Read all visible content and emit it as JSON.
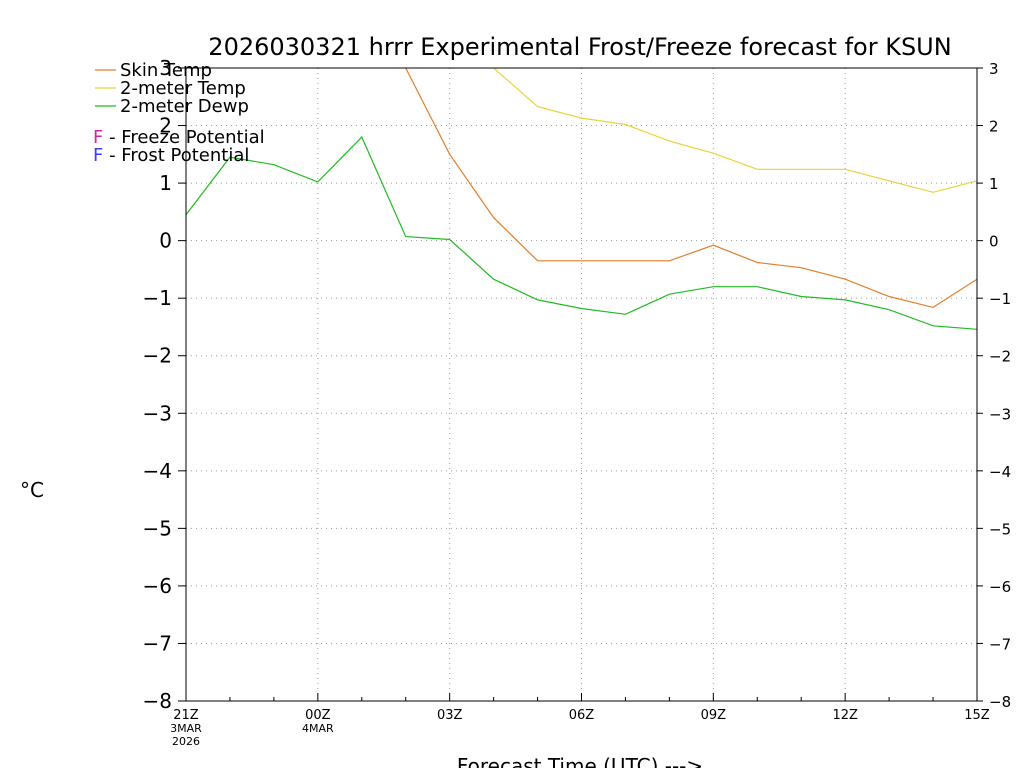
{
  "chart_data": {
    "type": "line",
    "title": "2026030321 hrrr Experimental Frost/Freeze forecast for KSUN",
    "xlabel": "Forecast Time (UTC) --->",
    "ylabel_unit": "°C",
    "ylim": [
      -8,
      3
    ],
    "xlim": [
      0,
      18
    ],
    "y_ticks": [
      "−8",
      "−7",
      "−6",
      "−5",
      "−4",
      "−3",
      "−2",
      "−1",
      "0",
      "1",
      "2",
      "3"
    ],
    "y_tick_values": [
      -8,
      -7,
      -6,
      -5,
      -4,
      -3,
      -2,
      -1,
      0,
      1,
      2,
      3
    ],
    "x_ticks": [
      {
        "x": 0,
        "lines": [
          "21Z",
          "3MAR",
          "2026"
        ]
      },
      {
        "x": 3,
        "lines": [
          "00Z",
          "4MAR"
        ]
      },
      {
        "x": 6,
        "lines": [
          "03Z"
        ]
      },
      {
        "x": 9,
        "lines": [
          "06Z"
        ]
      },
      {
        "x": 12,
        "lines": [
          "09Z"
        ]
      },
      {
        "x": 15,
        "lines": [
          "12Z"
        ]
      },
      {
        "x": 18,
        "lines": [
          "15Z"
        ]
      }
    ],
    "grid": true,
    "legend_position": "top-left",
    "x": [
      0,
      1,
      2,
      3,
      4,
      5,
      6,
      7,
      8,
      9,
      10,
      11,
      12,
      13,
      14,
      15,
      16,
      17,
      18
    ],
    "series": [
      {
        "name": "Skin Temp",
        "color": "#e07f2a",
        "values": [
          null,
          null,
          null,
          null,
          null,
          3.0,
          1.5,
          0.4,
          -0.35,
          -0.35,
          -0.35,
          -0.35,
          -0.08,
          -0.38,
          -0.47,
          -0.67,
          -0.97,
          -1.16,
          -0.67
        ]
      },
      {
        "name": "2-meter Temp",
        "color": "#e8d23a",
        "values": [
          null,
          null,
          null,
          null,
          null,
          null,
          null,
          3.0,
          2.33,
          2.13,
          2.02,
          1.73,
          1.52,
          1.24,
          1.24,
          1.24,
          1.04,
          0.84,
          1.04
        ]
      },
      {
        "name": "2-meter Dewp",
        "color": "#22bb22",
        "values": [
          0.45,
          1.45,
          1.32,
          1.02,
          1.8,
          0.07,
          0.02,
          -0.67,
          -1.03,
          -1.18,
          -1.28,
          -0.93,
          -0.8,
          -0.8,
          -0.97,
          -1.03,
          -1.2,
          -1.48,
          -1.54
        ]
      }
    ],
    "annotations": [
      {
        "letter": "F",
        "text": " - Freeze Potential",
        "color": "#cc2a9a"
      },
      {
        "letter": "F",
        "text": " - Frost Potential",
        "color": "#3c3cff"
      }
    ]
  }
}
